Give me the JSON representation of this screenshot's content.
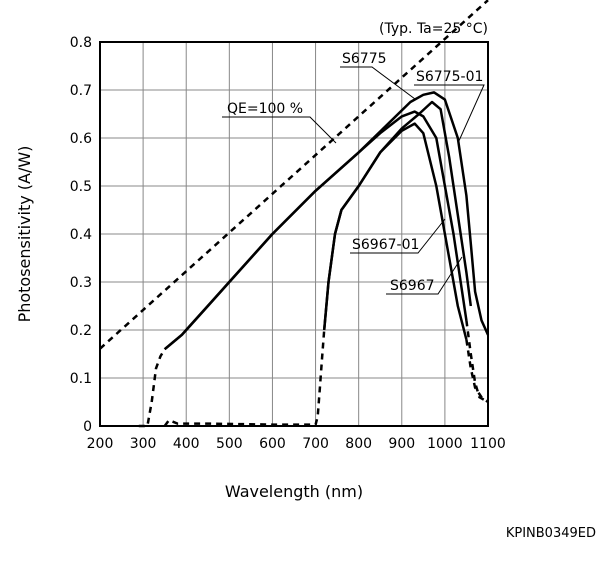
{
  "chart_data": {
    "type": "line",
    "note": "(Typ. Ta=25 °C)",
    "xlabel": "Wavelength (nm)",
    "ylabel": "Photosensitivity (A/W)",
    "xlim": [
      200,
      1100
    ],
    "ylim": [
      0,
      0.8
    ],
    "xticks": [
      "200",
      "300",
      "400",
      "500",
      "600",
      "700",
      "800",
      "900",
      "1000",
      "1100"
    ],
    "yticks": [
      "0",
      "0.1",
      "0.2",
      "0.3",
      "0.4",
      "0.5",
      "0.6",
      "0.7",
      "0.8"
    ],
    "grid": true,
    "series": [
      {
        "name": "QE=100 %",
        "style": "dashed",
        "points": [
          [
            200,
            0.161
          ],
          [
            1100,
            0.887
          ]
        ]
      },
      {
        "name": "S6775",
        "style": "solid",
        "points": [
          [
            350,
            0.16
          ],
          [
            370,
            0.175
          ],
          [
            390,
            0.19
          ],
          [
            400,
            0.2
          ],
          [
            450,
            0.25
          ],
          [
            500,
            0.3
          ],
          [
            600,
            0.4
          ],
          [
            700,
            0.49
          ],
          [
            800,
            0.57
          ],
          [
            850,
            0.61
          ],
          [
            900,
            0.645
          ],
          [
            930,
            0.655
          ],
          [
            950,
            0.645
          ],
          [
            980,
            0.6
          ],
          [
            1000,
            0.5
          ],
          [
            1020,
            0.4
          ],
          [
            1040,
            0.28
          ],
          [
            1050,
            0.22
          ]
        ],
        "dashed_points": [
          [
            290,
            0.0
          ],
          [
            310,
            0.0
          ],
          [
            320,
            0.05
          ],
          [
            330,
            0.12
          ],
          [
            340,
            0.145
          ],
          [
            350,
            0.16
          ]
        ],
        "dashed_end": [
          [
            1050,
            0.22
          ],
          [
            1060,
            0.15
          ],
          [
            1070,
            0.09
          ],
          [
            1080,
            0.06
          ],
          [
            1100,
            0.05
          ]
        ]
      },
      {
        "name": "S6775-01",
        "style": "solid",
        "points": [
          [
            350,
            0.16
          ],
          [
            390,
            0.19
          ],
          [
            400,
            0.2
          ],
          [
            450,
            0.25
          ],
          [
            500,
            0.3
          ],
          [
            600,
            0.4
          ],
          [
            700,
            0.49
          ],
          [
            800,
            0.57
          ],
          [
            880,
            0.64
          ],
          [
            920,
            0.675
          ],
          [
            950,
            0.69
          ],
          [
            975,
            0.695
          ],
          [
            1000,
            0.68
          ],
          [
            1030,
            0.6
          ],
          [
            1050,
            0.48
          ],
          [
            1060,
            0.38
          ],
          [
            1070,
            0.28
          ],
          [
            1085,
            0.22
          ],
          [
            1100,
            0.19
          ]
        ]
      },
      {
        "name": "S6967",
        "style": "solid",
        "points": [
          [
            720,
            0.2
          ],
          [
            730,
            0.3
          ],
          [
            745,
            0.4
          ],
          [
            760,
            0.45
          ],
          [
            800,
            0.5
          ],
          [
            850,
            0.57
          ],
          [
            900,
            0.615
          ],
          [
            930,
            0.63
          ],
          [
            950,
            0.61
          ],
          [
            980,
            0.5
          ],
          [
            1010,
            0.35
          ],
          [
            1030,
            0.25
          ],
          [
            1050,
            0.18
          ]
        ],
        "dashed_points": [
          [
            350,
            0.0
          ],
          [
            360,
            0.012
          ],
          [
            380,
            0.005
          ],
          [
            450,
            0.005
          ],
          [
            600,
            0.003
          ],
          [
            700,
            0.003
          ],
          [
            705,
            0.02
          ],
          [
            710,
            0.08
          ],
          [
            715,
            0.14
          ],
          [
            720,
            0.2
          ]
        ],
        "dashed_end": [
          [
            1050,
            0.18
          ],
          [
            1060,
            0.12
          ],
          [
            1070,
            0.08
          ],
          [
            1085,
            0.06
          ],
          [
            1100,
            0.05
          ]
        ]
      },
      {
        "name": "S6967-01",
        "style": "solid",
        "points": [
          [
            720,
            0.2
          ],
          [
            730,
            0.3
          ],
          [
            745,
            0.4
          ],
          [
            760,
            0.45
          ],
          [
            800,
            0.5
          ],
          [
            850,
            0.57
          ],
          [
            900,
            0.62
          ],
          [
            940,
            0.65
          ],
          [
            970,
            0.675
          ],
          [
            990,
            0.66
          ],
          [
            1010,
            0.56
          ],
          [
            1030,
            0.44
          ],
          [
            1050,
            0.32
          ],
          [
            1060,
            0.25
          ]
        ]
      }
    ],
    "annotations": [
      {
        "text": "QE=100 %"
      },
      {
        "text": "S6775"
      },
      {
        "text": "S6775-01"
      },
      {
        "text": "S6967-01"
      },
      {
        "text": "S6967"
      }
    ]
  },
  "footer_code": "KPINB0349ED"
}
